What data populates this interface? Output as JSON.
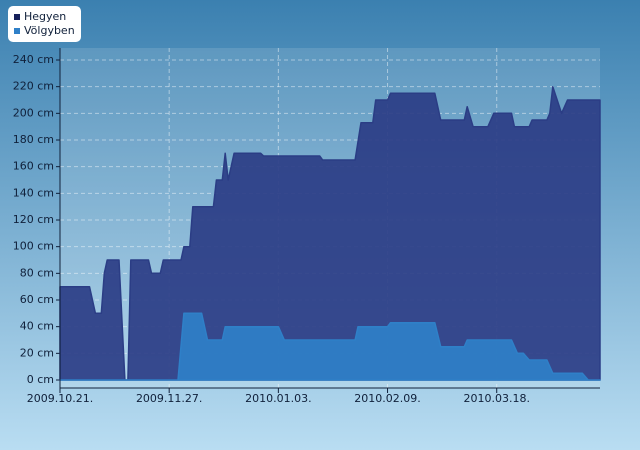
{
  "chart_data": {
    "type": "area",
    "xlim": [
      "2009-10-21",
      "2010-04-22"
    ],
    "xticks": [
      {
        "value": "2009-10-21",
        "label": "2009.10.21."
      },
      {
        "value": "2009-11-27",
        "label": "2009.11.27."
      },
      {
        "value": "2010-01-03",
        "label": "2010.01.03."
      },
      {
        "value": "2010-02-09",
        "label": "2010.02.09."
      },
      {
        "value": "2010-03-18",
        "label": "2010.03.18."
      }
    ],
    "ylim": [
      -6,
      249
    ],
    "yticks": [
      {
        "value": 0,
        "label": "0 cm"
      },
      {
        "value": 20,
        "label": "20 cm"
      },
      {
        "value": 40,
        "label": "40 cm"
      },
      {
        "value": 60,
        "label": "60 cm"
      },
      {
        "value": 80,
        "label": "80 cm"
      },
      {
        "value": 100,
        "label": "100 cm"
      },
      {
        "value": 120,
        "label": "120 cm"
      },
      {
        "value": 140,
        "label": "140 cm"
      },
      {
        "value": 160,
        "label": "160 cm"
      },
      {
        "value": 180,
        "label": "180 cm"
      },
      {
        "value": 200,
        "label": "200 cm"
      },
      {
        "value": 220,
        "label": "220 cm"
      },
      {
        "value": 240,
        "label": "240 cm"
      }
    ],
    "grid": true,
    "legend": "top-left",
    "series": [
      {
        "name": "Hegyen",
        "color": "#2b3d85",
        "x": [
          "2009-10-21",
          "2009-10-31",
          "2009-11-02",
          "2009-11-04",
          "2009-11-05",
          "2009-11-06",
          "2009-11-10",
          "2009-11-12",
          "2009-11-13",
          "2009-11-14",
          "2009-11-20",
          "2009-11-21",
          "2009-11-24",
          "2009-11-25",
          "2009-12-01",
          "2009-12-02",
          "2009-12-04",
          "2009-12-05",
          "2009-12-12",
          "2009-12-13",
          "2009-12-15",
          "2009-12-16",
          "2009-12-17",
          "2009-12-19",
          "2009-12-28",
          "2009-12-29",
          "2010-01-17",
          "2010-01-18",
          "2010-01-29",
          "2010-01-31",
          "2010-02-04",
          "2010-02-05",
          "2010-02-09",
          "2010-02-10",
          "2010-02-25",
          "2010-02-27",
          "2010-03-07",
          "2010-03-08",
          "2010-03-10",
          "2010-03-15",
          "2010-03-17",
          "2010-03-23",
          "2010-03-24",
          "2010-03-29",
          "2010-03-30",
          "2010-04-04",
          "2010-04-05",
          "2010-04-06",
          "2010-04-09",
          "2010-04-11",
          "2010-04-22"
        ],
        "values": [
          70,
          70,
          50,
          50,
          80,
          90,
          90,
          0,
          0,
          90,
          90,
          80,
          80,
          90,
          90,
          100,
          100,
          130,
          130,
          150,
          150,
          170,
          150,
          170,
          170,
          168,
          168,
          165,
          165,
          193,
          193,
          210,
          210,
          215,
          215,
          195,
          195,
          205,
          190,
          190,
          200,
          200,
          190,
          190,
          195,
          195,
          200,
          220,
          200,
          210,
          210
        ]
      },
      {
        "name": "Völgyben",
        "color": "#2f80c8",
        "x": [
          "2009-10-21",
          "2009-11-30",
          "2009-12-02",
          "2009-12-08",
          "2009-12-10",
          "2009-12-15",
          "2009-12-16",
          "2010-01-03",
          "2010-01-05",
          "2010-01-29",
          "2010-01-30",
          "2010-02-09",
          "2010-02-10",
          "2010-02-25",
          "2010-02-27",
          "2010-03-07",
          "2010-03-08",
          "2010-03-23",
          "2010-03-25",
          "2010-03-27",
          "2010-03-29",
          "2010-04-04",
          "2010-04-06",
          "2010-04-16",
          "2010-04-18",
          "2010-04-22"
        ],
        "values": [
          0,
          0,
          50,
          50,
          30,
          30,
          40,
          40,
          30,
          30,
          40,
          40,
          43,
          43,
          25,
          25,
          30,
          30,
          20,
          20,
          15,
          15,
          5,
          5,
          0,
          0
        ]
      }
    ]
  }
}
